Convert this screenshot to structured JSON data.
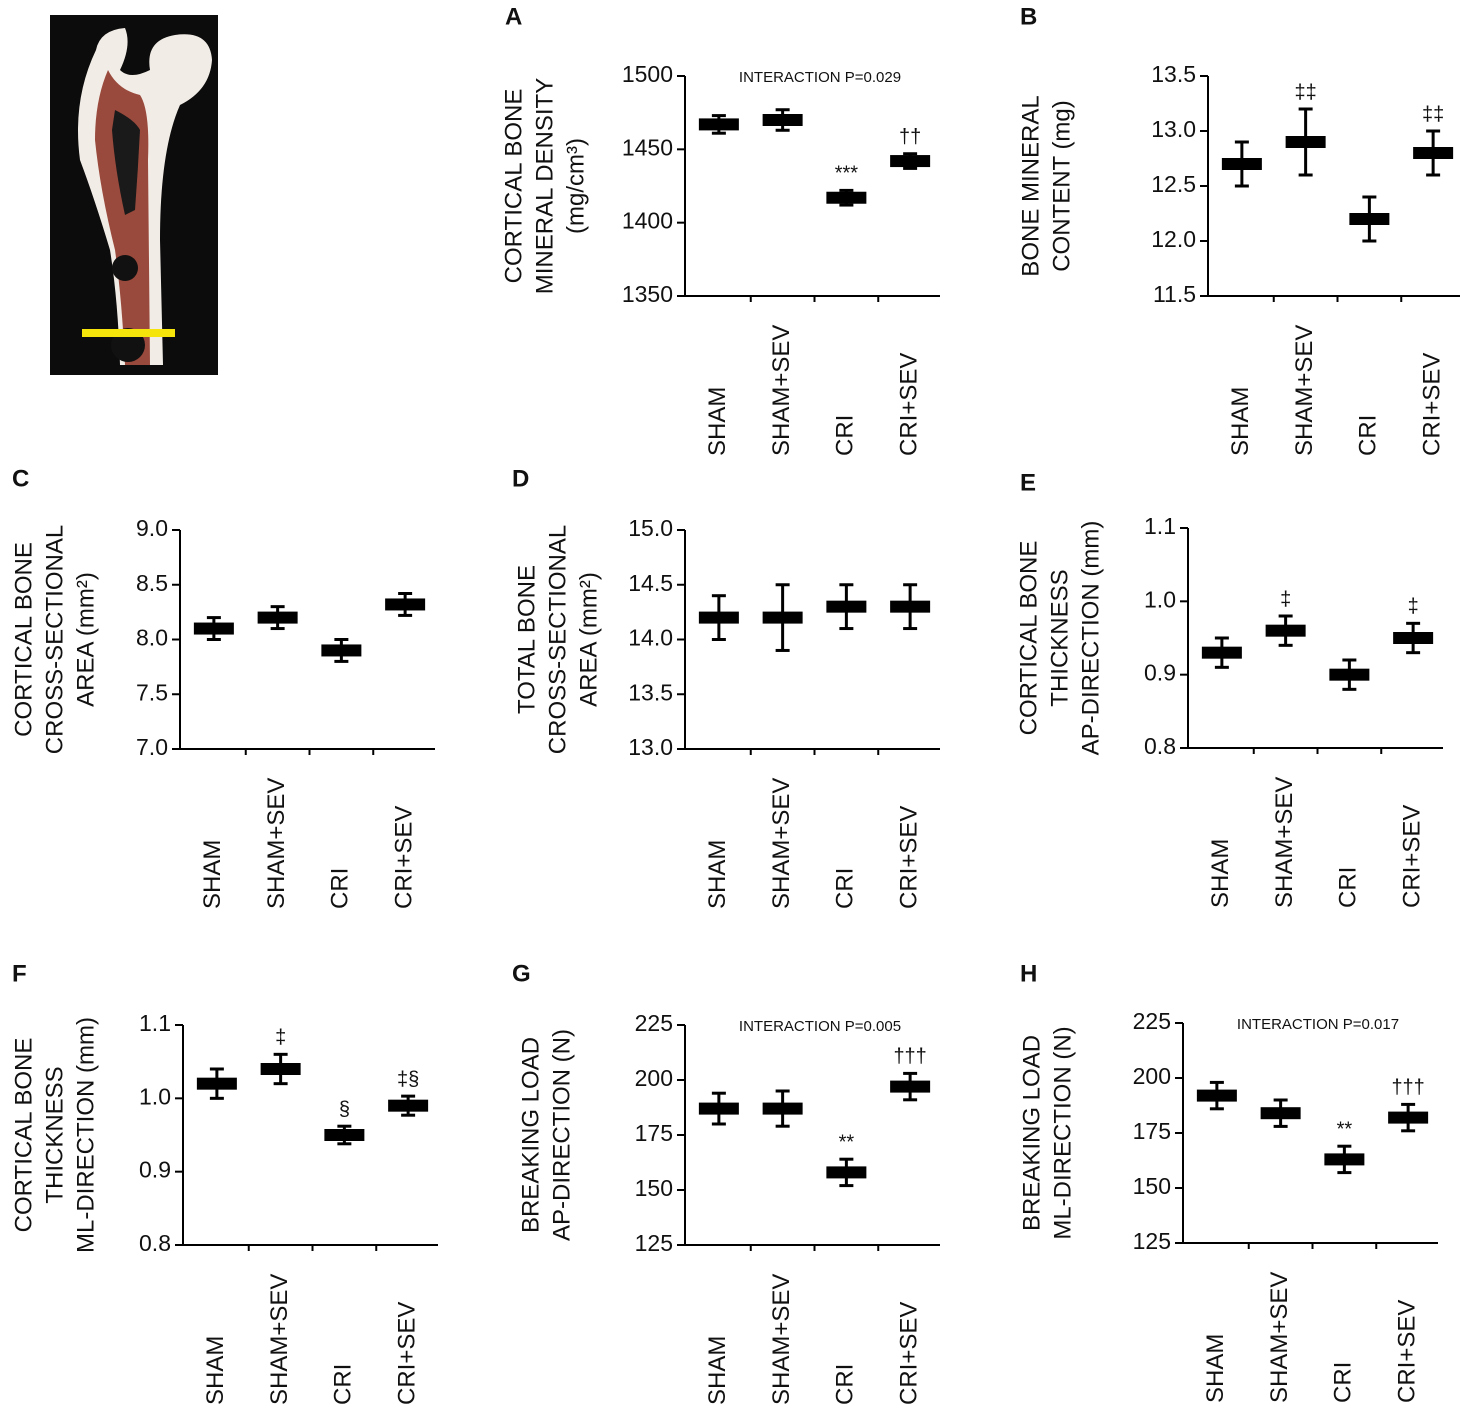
{
  "chart_data": [
    {
      "type": "errorbar",
      "panel": "A",
      "ytitle": [
        "CORTICAL BONE",
        "MINERAL  DENSITY",
        "(mg/cm³)"
      ],
      "annotation": "INTERACTION P=0.029",
      "categories": [
        "SHAM",
        "SHAM+SEV",
        "CRI",
        "CRI+SEV"
      ],
      "values": [
        1467,
        1470,
        1417,
        1442
      ],
      "errors": [
        6,
        7,
        5,
        5
      ],
      "marks": [
        null,
        null,
        "***",
        "††"
      ],
      "color": "#000000",
      "ylim": [
        1350,
        1500
      ],
      "yticks": [
        1350,
        1400,
        1450,
        1500
      ]
    },
    {
      "type": "errorbar",
      "panel": "B",
      "ytitle": [
        "BONE MINERAL",
        "CONTENT (mg)"
      ],
      "categories": [
        "SHAM",
        "SHAM+SEV",
        "CRI",
        "CRI+SEV"
      ],
      "values": [
        12.7,
        12.9,
        12.2,
        12.8
      ],
      "errors": [
        0.2,
        0.3,
        0.2,
        0.2
      ],
      "marks": [
        null,
        "‡‡",
        null,
        "‡‡"
      ],
      "color": "#000000",
      "ylim": [
        11.5,
        13.5
      ],
      "yticks": [
        11.5,
        {
          "value": 12,
          "label": "12.0"
        },
        12.5,
        {
          "value": 13,
          "label": "13.0"
        },
        13.5
      ]
    },
    {
      "type": "errorbar",
      "panel": "C",
      "ytitle": [
        "CORTICAL BONE",
        "CROSS-SECTIONAL",
        "AREA (mm²)"
      ],
      "categories": [
        "SHAM",
        "SHAM+SEV",
        "CRI",
        "CRI+SEV"
      ],
      "values": [
        8.1,
        8.2,
        7.9,
        8.32
      ],
      "errors": [
        0.1,
        0.1,
        0.1,
        0.1
      ],
      "marks": [
        null,
        null,
        null,
        null
      ],
      "color": "#000000",
      "ylim": [
        7,
        9
      ],
      "yticks": [
        {
          "value": 7,
          "label": "7.0"
        },
        7.5,
        {
          "value": 8,
          "label": "8.0"
        },
        8.5,
        {
          "value": 9,
          "label": "9.0"
        }
      ]
    },
    {
      "type": "errorbar",
      "panel": "D",
      "ytitle": [
        "TOTAL BONE",
        "CROSS-SECTIONAL",
        "AREA (mm²)"
      ],
      "categories": [
        "SHAM",
        "SHAM+SEV",
        "CRI",
        "CRI+SEV"
      ],
      "values": [
        14.2,
        14.2,
        14.3,
        14.3
      ],
      "errors": [
        0.2,
        0.3,
        0.2,
        0.2
      ],
      "marks": [
        null,
        null,
        null,
        null
      ],
      "color": "#000000",
      "ylim": [
        13,
        15
      ],
      "yticks": [
        {
          "value": 13,
          "label": "13.0"
        },
        13.5,
        {
          "value": 14,
          "label": "14.0"
        },
        14.5,
        {
          "value": 15,
          "label": "15.0"
        }
      ]
    },
    {
      "type": "errorbar",
      "panel": "E",
      "ytitle": [
        "CORTICAL BONE",
        "THICKNESS",
        "AP-DIRECTION (mm)"
      ],
      "categories": [
        "SHAM",
        "SHAM+SEV",
        "CRI",
        "CRI+SEV"
      ],
      "values": [
        0.93,
        0.96,
        0.9,
        0.95
      ],
      "errors": [
        0.02,
        0.02,
        0.02,
        0.02
      ],
      "marks": [
        null,
        "‡",
        null,
        "‡"
      ],
      "color": "#000000",
      "ylim": [
        0.8,
        1.1
      ],
      "yticks": [
        0.8,
        0.9,
        {
          "value": 1,
          "label": "1.0"
        },
        1.1
      ]
    },
    {
      "type": "errorbar",
      "panel": "F",
      "ytitle": [
        "CORTICAL BONE",
        "THICKNESS",
        "ML-DIRECTION (mm)"
      ],
      "categories": [
        "SHAM",
        "SHAM+SEV",
        "CRI",
        "CRI+SEV"
      ],
      "values": [
        1.02,
        1.04,
        0.95,
        0.99
      ],
      "errors": [
        0.02,
        0.02,
        0.012,
        0.013
      ],
      "marks": [
        null,
        "‡",
        "§",
        "‡§"
      ],
      "color": "#000000",
      "ylim": [
        0.8,
        1.1
      ],
      "yticks": [
        0.8,
        0.9,
        {
          "value": 1,
          "label": "1.0"
        },
        1.1
      ]
    },
    {
      "type": "errorbar",
      "panel": "G",
      "ytitle": [
        "BREAKING LOAD",
        "AP-DIRECTION (N)"
      ],
      "annotation": "INTERACTION P=0.005",
      "categories": [
        "SHAM",
        "SHAM+SEV",
        "CRI",
        "CRI+SEV"
      ],
      "values": [
        187,
        187,
        158,
        197
      ],
      "errors": [
        7,
        8,
        6,
        6
      ],
      "marks": [
        null,
        null,
        "**",
        "†††"
      ],
      "color": "#000000",
      "ylim": [
        125,
        225
      ],
      "yticks": [
        125,
        150,
        175,
        200,
        225
      ]
    },
    {
      "type": "errorbar",
      "panel": "H",
      "ytitle": [
        "BREAKING LOAD",
        "ML-DIRECTION (N)"
      ],
      "annotation": "INTERACTION P=0.017",
      "categories": [
        "SHAM",
        "SHAM+SEV",
        "CRI",
        "CRI+SEV"
      ],
      "values": [
        192,
        184,
        163,
        182
      ],
      "errors": [
        6,
        6,
        6,
        6
      ],
      "marks": [
        null,
        null,
        "**",
        "†††"
      ],
      "color": "#000000",
      "ylim": [
        125,
        225
      ],
      "yticks": [
        125,
        150,
        175,
        200,
        225
      ]
    }
  ]
}
